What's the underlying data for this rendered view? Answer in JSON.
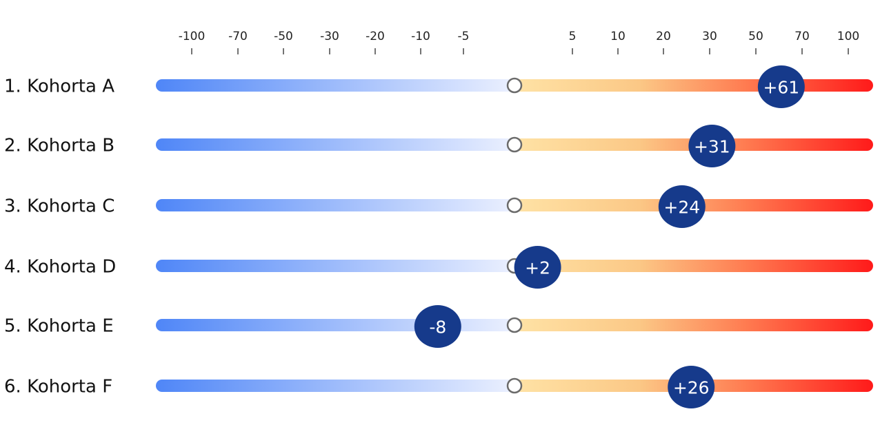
{
  "chart_data": {
    "type": "bar",
    "axis_ticks": [
      "-100",
      "-70",
      "-50",
      "-30",
      "-20",
      "-10",
      "-5",
      "5",
      "10",
      "20",
      "30",
      "50",
      "70",
      "100"
    ],
    "xlim": [
      -100,
      100
    ],
    "categories": [
      "1. Kohorta A",
      "2. Kohorta B",
      "3. Kohorta C",
      "4. Kohorta D",
      "5. Kohorta E",
      "6. Kohorta F"
    ],
    "values": [
      61,
      31,
      24,
      2,
      -8,
      26
    ],
    "value_labels": [
      "+61",
      "+31",
      "+24",
      "+2",
      "-8",
      "+26"
    ],
    "colors": {
      "negative_end": "#4f86f7",
      "neutral_light": "#eef2ff",
      "neutral_warm": "#ffe3a6",
      "mid_warm": "#fbc886",
      "positive_end": "#ff1a1a",
      "badge": "#163a8b",
      "zero_marker_stroke": "#6b6b6b"
    }
  }
}
